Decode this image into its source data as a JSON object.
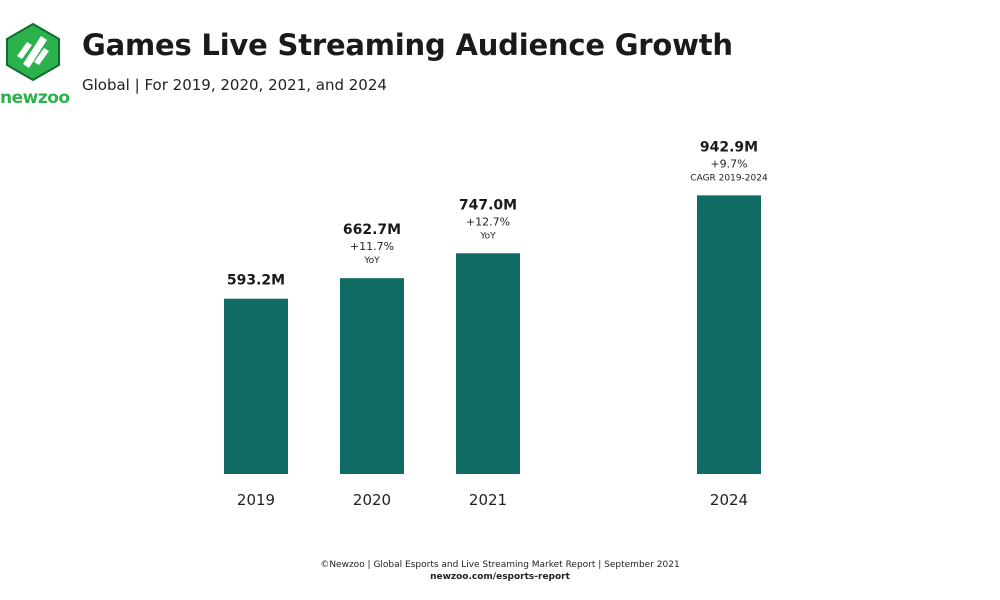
{
  "brand": {
    "logo_text": "newzoo",
    "colors": {
      "logo_green": "#2bb24c",
      "logo_dark": "#0f6d2d",
      "text": "#2bb24c"
    }
  },
  "header": {
    "title": "Games Live Streaming Audience Growth",
    "subtitle": "Global | For 2019, 2020, 2021, and 2024"
  },
  "chart_data": {
    "type": "bar",
    "categories": [
      "2019",
      "2020",
      "2021",
      "2024"
    ],
    "values": [
      593.2,
      662.7,
      747.0,
      942.9
    ],
    "value_labels": [
      "593.2M",
      "662.7M",
      "747.0M",
      "942.9M"
    ],
    "growth_labels": [
      "",
      "+11.7%",
      "+12.7%",
      "+9.7%"
    ],
    "growth_notes": [
      "",
      "YoY",
      "YoY",
      "CAGR 2019-2024"
    ],
    "unit": "M",
    "ylim": [
      0,
      1000
    ],
    "grid": false,
    "bar_color": "#0f6b64"
  },
  "footer": {
    "source": "©Newzoo | Global Esports and Live Streaming Market Report | September 2021",
    "url": "newzoo.com/esports-report"
  }
}
